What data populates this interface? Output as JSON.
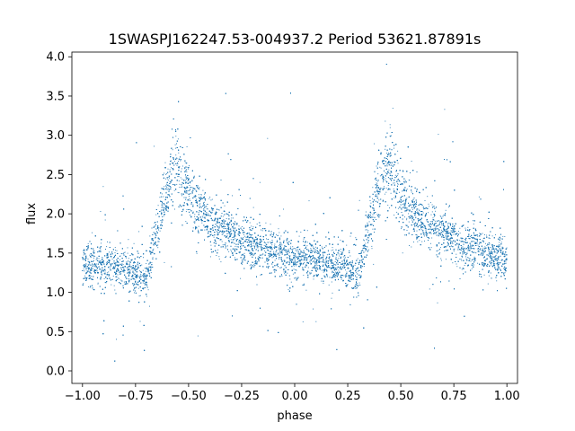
{
  "chart_data": {
    "type": "scatter",
    "title": "1SWASPJ162247.53-004937.2 Period 53621.87891s",
    "xlabel": "phase",
    "ylabel": "flux",
    "xlim": [
      -1.05,
      1.05
    ],
    "ylim": [
      -0.16,
      4.06
    ],
    "xticks": [
      -1.0,
      -0.75,
      -0.5,
      -0.25,
      0.0,
      0.25,
      0.5,
      0.75,
      1.0
    ],
    "xtick_labels": [
      "−1.00",
      "−0.75",
      "−0.50",
      "−0.25",
      "0.00",
      "0.25",
      "0.50",
      "0.75",
      "1.00"
    ],
    "yticks": [
      0.0,
      0.5,
      1.0,
      1.5,
      2.0,
      2.5,
      3.0,
      3.5,
      4.0
    ],
    "ytick_labels": [
      "0.0",
      "0.5",
      "1.0",
      "1.5",
      "2.0",
      "2.5",
      "3.0",
      "3.5",
      "4.0"
    ],
    "grid": false,
    "legend": "none",
    "marker_color": "#1f77b4",
    "series": [
      {
        "x": [
          -1.0,
          -0.9,
          -0.8,
          -0.75,
          -0.7,
          -0.65,
          -0.6,
          -0.56,
          -0.55,
          -0.5,
          -0.45,
          -0.4,
          -0.3,
          -0.2,
          -0.1,
          0.0,
          0.1,
          0.2,
          0.25,
          0.3,
          0.35,
          0.4,
          0.44,
          0.45,
          0.5,
          0.55,
          0.6,
          0.7,
          0.8,
          0.9,
          1.0
        ],
        "y": [
          1.35,
          1.32,
          1.3,
          1.25,
          1.15,
          1.8,
          2.35,
          2.65,
          2.6,
          2.25,
          2.05,
          1.9,
          1.72,
          1.6,
          1.5,
          1.45,
          1.4,
          1.35,
          1.3,
          1.2,
          1.85,
          2.35,
          2.65,
          2.6,
          2.25,
          2.05,
          1.9,
          1.75,
          1.6,
          1.5,
          1.4
        ]
      }
    ]
  }
}
